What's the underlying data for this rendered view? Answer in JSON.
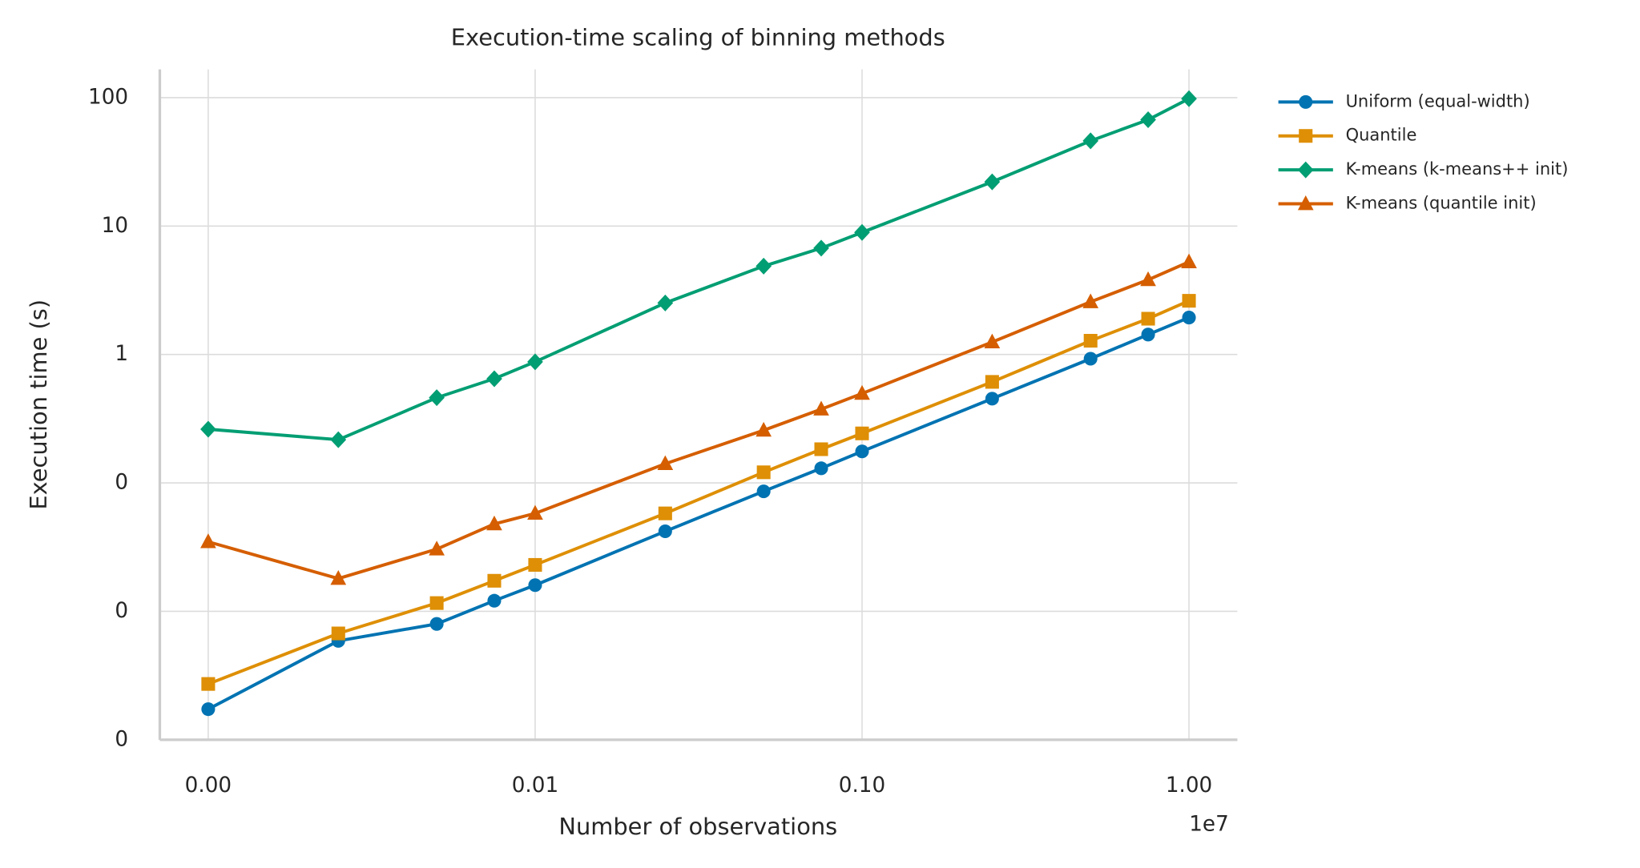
{
  "chart_data": {
    "type": "line",
    "title": "Execution-time scaling of binning methods",
    "x_label": "Number of observations",
    "y_label": "Execution time (s)",
    "x_offset_label": "1e7",
    "x": [
      0.001,
      0.0025,
      0.005,
      0.0075,
      0.01,
      0.025,
      0.05,
      0.075,
      0.1,
      0.25,
      0.5,
      0.75,
      1.0
    ],
    "series": [
      {
        "name": "Uniform (equal-width)",
        "color": "#0173b2",
        "marker": "circle",
        "values": [
          0.00173,
          0.00589,
          0.00798,
          0.0121,
          0.016,
          0.042,
          0.086,
          0.13,
          0.176,
          0.453,
          0.927,
          1.43,
          1.94
        ]
      },
      {
        "name": "Quantile",
        "color": "#de8f05",
        "marker": "square",
        "values": [
          0.00272,
          0.00673,
          0.0116,
          0.0173,
          0.023,
          0.0579,
          0.121,
          0.183,
          0.243,
          0.612,
          1.28,
          1.9,
          2.62
        ]
      },
      {
        "name": "K-means (k-means++ init)",
        "color": "#029e73",
        "marker": "diamond",
        "values": [
          0.262,
          0.217,
          0.461,
          0.648,
          0.877,
          2.52,
          4.88,
          6.73,
          8.93,
          22.1,
          46.1,
          67.3,
          98.2
        ]
      },
      {
        "name": "K-means (quantile init)",
        "color": "#d55e00",
        "marker": "triangle",
        "values": [
          0.0348,
          0.018,
          0.0305,
          0.0479,
          0.0579,
          0.141,
          0.257,
          0.375,
          0.497,
          1.25,
          2.57,
          3.82,
          5.26
        ]
      }
    ],
    "xscale": "log",
    "yscale": "log",
    "xlim": [
      0.000711,
      1.406
    ],
    "ylim": [
      0.001,
      166
    ],
    "xticks": [
      {
        "value": 0.001,
        "label": "0.00"
      },
      0.01,
      {
        "value": 0.1,
        "label": "0.10"
      },
      {
        "value": 1,
        "label": "1.00"
      }
    ],
    "yticks": [
      {
        "value": 0.001,
        "label": "0"
      },
      {
        "value": 0.01,
        "label": "0"
      },
      {
        "value": 0.1,
        "label": "0"
      },
      1,
      10,
      100
    ],
    "grid": true,
    "legend_loc": "outside upper right"
  }
}
